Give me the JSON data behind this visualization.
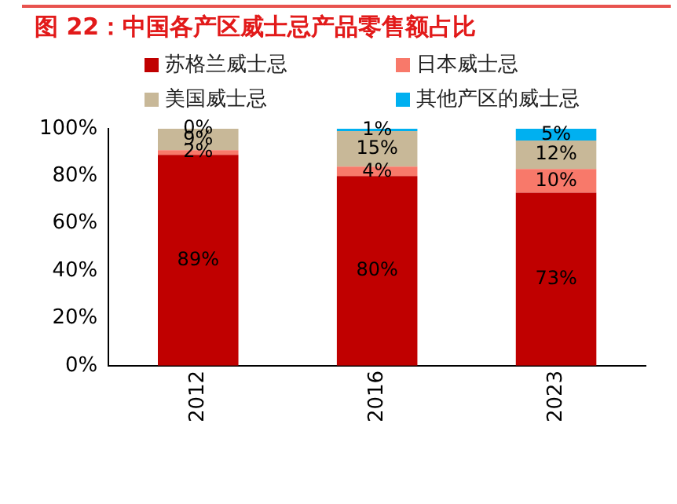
{
  "chart_data": {
    "type": "bar",
    "title": "图 22：中国各产区威士忌产品零售额占比",
    "categories": [
      "2012",
      "2016",
      "2023"
    ],
    "stacked": true,
    "legend": "top",
    "series": [
      {
        "name": "苏格兰威士忌",
        "color": "#c00000",
        "values": [
          89,
          80,
          73
        ],
        "value_labels": [
          "89%",
          "80%",
          "73%"
        ]
      },
      {
        "name": "日本威士忌",
        "color": "#f8796a",
        "values": [
          2,
          4,
          10
        ],
        "value_labels": [
          "2%",
          "4%",
          "10%"
        ]
      },
      {
        "name": "美国威士忌",
        "color": "#c8b898",
        "values": [
          9,
          15,
          12
        ],
        "value_labels": [
          "9%",
          "15%",
          "12%"
        ]
      },
      {
        "name": "其他产区的威士忌",
        "color": "#00b0f0",
        "values": [
          0,
          1,
          5
        ],
        "value_labels": [
          "0%",
          "1%",
          "5%"
        ]
      }
    ],
    "ylim": [
      0,
      100
    ],
    "yticks": [
      {
        "value": 0,
        "label": "0%"
      },
      {
        "value": 20,
        "label": "20%"
      },
      {
        "value": 40,
        "label": "40%"
      },
      {
        "value": 60,
        "label": "60%"
      },
      {
        "value": 80,
        "label": "80%"
      },
      {
        "value": 100,
        "label": "100%"
      }
    ],
    "grid": false
  }
}
